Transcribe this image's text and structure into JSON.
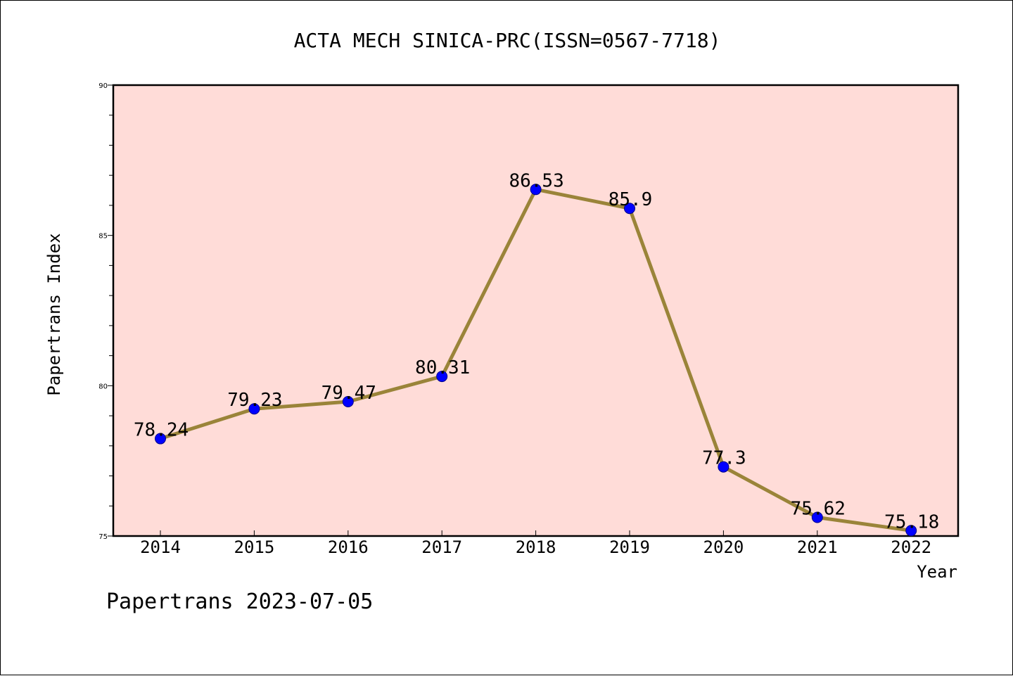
{
  "footer": "Papertrans 2023-07-05",
  "chart_data": {
    "type": "line",
    "title": "ACTA MECH SINICA-PRC(ISSN=0567-7718)",
    "xlabel": "Year",
    "ylabel": "Papertrans Index",
    "categories": [
      "2014",
      "2015",
      "2016",
      "2017",
      "2018",
      "2019",
      "2020",
      "2021",
      "2022"
    ],
    "values": [
      78.24,
      79.23,
      79.47,
      80.31,
      86.53,
      85.9,
      77.3,
      75.62,
      75.18
    ],
    "data_labels": [
      "78.24",
      "79.23",
      "79.47",
      "80.31",
      "86.53",
      "85.9",
      "77.3",
      "75.62",
      "75.18"
    ],
    "ylim": [
      75,
      90
    ],
    "yticks": [
      "75",
      "80",
      "85",
      "90"
    ],
    "ytick_values": [
      75,
      80,
      85,
      90
    ],
    "minor_ytick_step": 1,
    "grid": false,
    "legend": "none",
    "colors": {
      "plot_background": "#ffdcd8",
      "line": "#9a8439",
      "marker": "#0000ff",
      "marker_edge": "#00008b",
      "axis": "#000000"
    }
  }
}
